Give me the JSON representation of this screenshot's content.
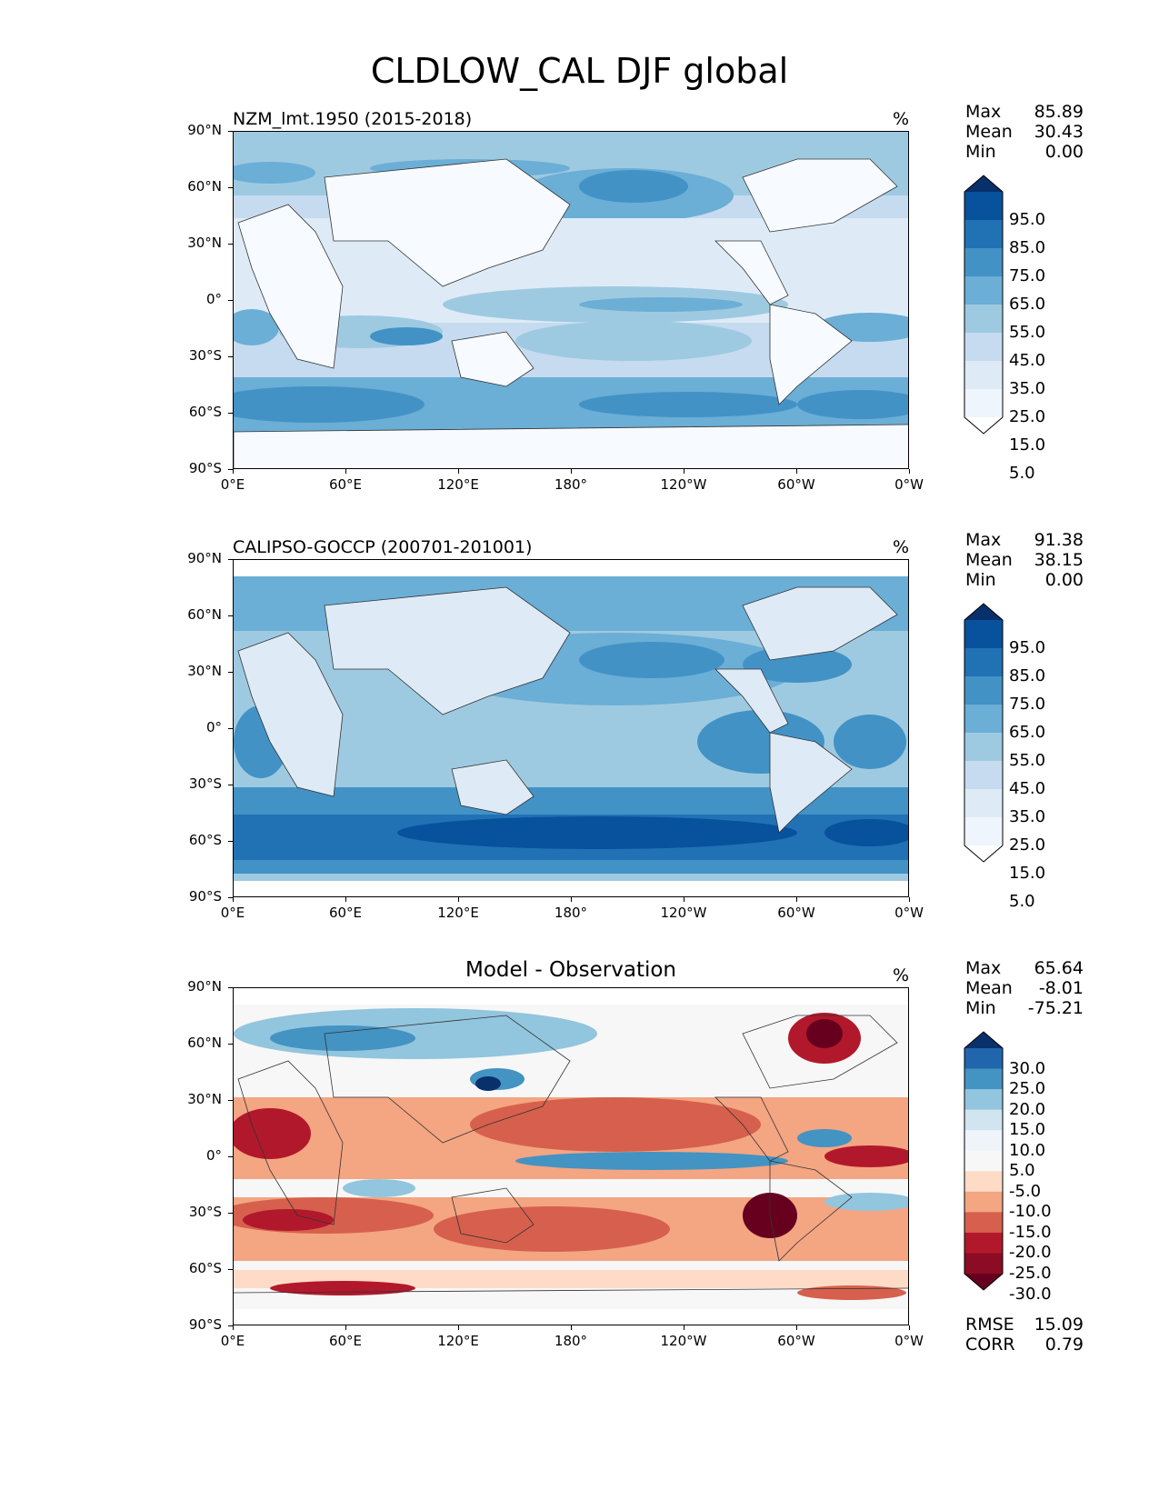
{
  "title": "CLDLOW_CAL DJF global",
  "x_ticks": [
    "0°E",
    "60°E",
    "120°E",
    "180°",
    "120°W",
    "60°W",
    "0°W"
  ],
  "y_ticks": [
    "90°N",
    "60°N",
    "30°N",
    "0°",
    "30°S",
    "60°S",
    "90°S"
  ],
  "chart_data": [
    {
      "type": "heatmap",
      "title": "NZM_lmt.1950 (2015-2018)",
      "units": "%",
      "stats": {
        "max_label": "Max",
        "max": "85.89",
        "mean_label": "Mean",
        "mean": "30.43",
        "min_label": "Min",
        "min": "0.00"
      },
      "colorbar": {
        "levels": [
          "95.0",
          "85.0",
          "75.0",
          "65.0",
          "55.0",
          "45.0",
          "35.0",
          "25.0",
          "15.0",
          "5.0"
        ],
        "colors": [
          "#08306b",
          "#08519c",
          "#2171b5",
          "#4292c6",
          "#6baed6",
          "#9ecae1",
          "#c6dbef",
          "#deebf7",
          "#eef5fc",
          "#ffffff"
        ]
      },
      "xlim": [
        0,
        360
      ],
      "ylim": [
        -90,
        90
      ]
    },
    {
      "type": "heatmap",
      "title": "CALIPSO-GOCCP (200701-201001)",
      "units": "%",
      "stats": {
        "max_label": "Max",
        "max": "91.38",
        "mean_label": "Mean",
        "mean": "38.15",
        "min_label": "Min",
        "min": "0.00"
      },
      "colorbar": {
        "levels": [
          "95.0",
          "85.0",
          "75.0",
          "65.0",
          "55.0",
          "45.0",
          "35.0",
          "25.0",
          "15.0",
          "5.0"
        ],
        "colors": [
          "#08306b",
          "#08519c",
          "#2171b5",
          "#4292c6",
          "#6baed6",
          "#9ecae1",
          "#c6dbef",
          "#deebf7",
          "#eef5fc",
          "#ffffff"
        ]
      },
      "xlim": [
        0,
        360
      ],
      "ylim": [
        -90,
        90
      ]
    },
    {
      "type": "heatmap",
      "title": "Model - Observation",
      "units": "%",
      "stats": {
        "max_label": "Max",
        "max": "65.64",
        "mean_label": "Mean",
        "mean": "-8.01",
        "min_label": "Min",
        "min": "-75.21"
      },
      "colorbar": {
        "levels": [
          "30.0",
          "25.0",
          "20.0",
          "15.0",
          "10.0",
          "5.0",
          "-5.0",
          "-10.0",
          "-15.0",
          "-20.0",
          "-25.0",
          "-30.0"
        ],
        "colors": [
          "#08306b",
          "#2166ac",
          "#4393c3",
          "#92c5de",
          "#d1e5f0",
          "#eef4f9",
          "#f7f7f7",
          "#fddbc7",
          "#f4a582",
          "#d6604d",
          "#b2182b",
          "#8b0c24",
          "#67001f"
        ]
      },
      "rmse_label": "RMSE",
      "rmse": "15.09",
      "corr_label": "CORR",
      "corr": "0.79",
      "xlim": [
        0,
        360
      ],
      "ylim": [
        -90,
        90
      ]
    }
  ]
}
